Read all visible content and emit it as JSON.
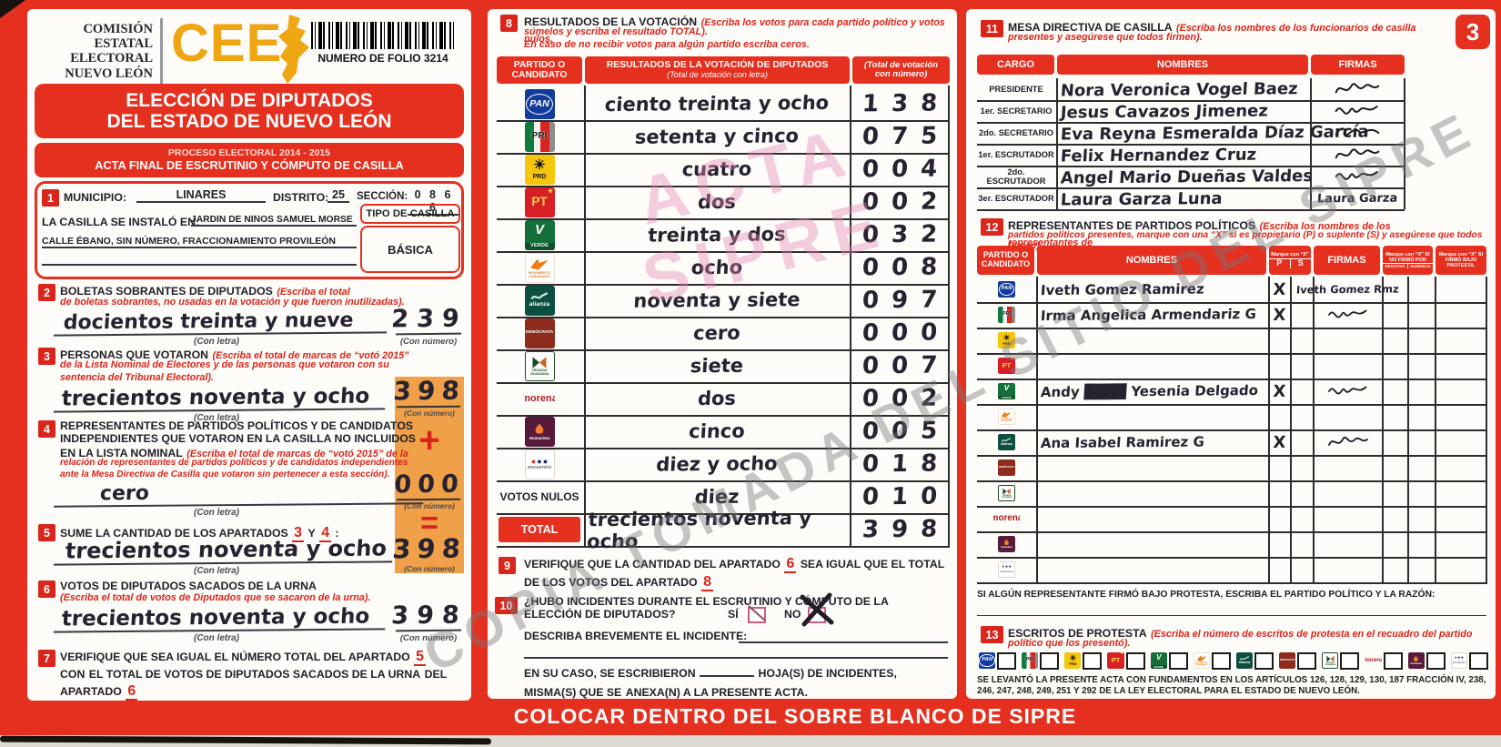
{
  "watermarks": {
    "diagonal": "COPIA TOMADA DEL SITIO DEL SIPRE",
    "stamp_line1": "ACTA",
    "stamp_line2": "SIPRE"
  },
  "header": {
    "org": [
      "COMISIÓN",
      "ESTATAL",
      "ELECTORAL",
      "NUEVO LEÓN"
    ],
    "logo_text": "CEE",
    "folio": "NUMERO DE FOLIO 3214",
    "title1": "ELECCIÓN DE DIPUTADOS",
    "title2": "DEL ESTADO DE NUEVO LEÓN",
    "process": "PROCESO ELECTORAL  2014 - 2015",
    "acta_title": "ACTA FINAL DE ESCRUTINIO Y CÓMPUTO DE CASILLA"
  },
  "captions": {
    "con_letra": "(Con letra)",
    "con_numero": "(Con número)"
  },
  "section1": {
    "num": "1",
    "municipio_label": "MUNICIPIO:",
    "municipio": "LINARES",
    "distrito_label": "DISTRITO:",
    "distrito": "25",
    "seccion_label": "SECCIÓN:",
    "seccion": "0 8 6 6",
    "instalada_label": "LA CASILLA SE INSTALÓ EN:",
    "instalada": "JARDÍN DE NIÑOS SAMUEL MORSE",
    "direccion": "CALLE ÉBANO, SIN NÚMERO, FRACCIONAMIENTO PROVILEÓN",
    "tipo_label": "TIPO DE CASILLA",
    "tipo": "BÁSICA"
  },
  "section2": {
    "num": "2",
    "title": "BOLETAS SOBRANTES DE DIPUTADOS",
    "hint1": "(Escriba el total",
    "hint2": "de boletas sobrantes, no usadas en la votación y que fueron inutilizadas).",
    "letra": "docientos treinta y nueve",
    "numero": "239"
  },
  "section3": {
    "num": "3",
    "title": "PERSONAS QUE VOTARON",
    "hint1": "(Escriba el total de marcas de “votó 2015”",
    "hint2": "de la Lista Nominal de Electores y de las personas que votaron con su",
    "hint3": "sentencia del Tribunal Electoral).",
    "letra": "trecientos noventa y ocho",
    "numero": "398"
  },
  "section4": {
    "num": "4",
    "title1": "REPRESENTANTES DE PARTIDOS POLÍTICOS Y DE CANDIDATOS",
    "title2": "INDEPENDIENTES QUE VOTARON EN LA CASILLA NO INCLUIDOS",
    "title3": "EN LA LISTA NOMINAL",
    "hint1": "(Escriba el total de marcas de “votó 2015” de la",
    "hint2": "relación de representantes de partidos políticos y de candidatos independientes",
    "hint3": "ante la Mesa Directiva de Casilla que votaron sin pertenecer a esta sección).",
    "letra": "cero",
    "numero": "000",
    "plus": "+"
  },
  "section5": {
    "num": "5",
    "t1": "SUME LA CANTIDAD DE LOS APARTADOS",
    "r1": "3",
    "t2": "Y",
    "r2": "4",
    "t3": ":",
    "letra": "trecientos noventa y ocho",
    "numero": "398",
    "equals": "="
  },
  "section6": {
    "num": "6",
    "title": "VOTOS DE DIPUTADOS SACADOS DE LA URNA",
    "hint": "(Escriba el total de votos de Diputados que se sacaron de la urna).",
    "letra": "trecientos noventa y ocho",
    "numero": "398"
  },
  "section7": {
    "num": "7",
    "t1": "VERIFIQUE QUE SEA IGUAL EL NÚMERO TOTAL DEL APARTADO",
    "r1": "5",
    "t2": "CON",
    "t3": "EL TOTAL DE VOTOS DE DIPUTADOS SACADOS DE LA URNA",
    "t4": "DEL APARTADO",
    "r2": "6"
  },
  "section8": {
    "num": "8",
    "title": "RESULTADOS DE LA VOTACIÓN",
    "hint1": "(Escriba los votos para cada partido político y votos nulos,",
    "hint2": "súmelos y escriba el resultado TOTAL).",
    "hint3": "En caso de no recibir votos para algún partido escriba ceros.",
    "col1a": "PARTIDO O",
    "col1b": "CANDIDATO",
    "col2": "RESULTADOS DE LA VOTACIÓN DE DIPUTADOS",
    "col2sub": "(Total de votación con letra)",
    "col3a": "(Total de votación",
    "col3b": "con número)",
    "votos_nulos_label": "VOTOS NULOS",
    "total_label": "TOTAL",
    "rows": [
      {
        "party": "PAN",
        "letra": "ciento treinta y ocho",
        "numero": "138"
      },
      {
        "party": "PRI",
        "letra": "setenta y cinco",
        "numero": "075"
      },
      {
        "party": "PRD",
        "letra": "cuatro",
        "numero": "004"
      },
      {
        "party": "PT",
        "letra": "dos",
        "numero": "002"
      },
      {
        "party": "VERDE",
        "letra": "treinta y dos",
        "numero": "032"
      },
      {
        "party": "MC",
        "letra": "ocho",
        "numero": "008"
      },
      {
        "party": "ALIANZA",
        "letra": "noventa y siete",
        "numero": "097"
      },
      {
        "party": "DEMOCRATA",
        "letra": "cero",
        "numero": "000"
      },
      {
        "party": "CRUZADA",
        "letra": "siete",
        "numero": "007"
      },
      {
        "party": "MORENA",
        "letra": "dos",
        "numero": "002"
      },
      {
        "party": "HUMANISTA",
        "letra": "cinco",
        "numero": "005"
      },
      {
        "party": "ENCUENTRO",
        "letra": "diez y ocho",
        "numero": "018"
      },
      {
        "party": "VOTOS_NULOS",
        "letra": "diez",
        "numero": "010"
      },
      {
        "party": "TOTAL",
        "letra": "trecientos noventa y ocho",
        "numero": "398"
      }
    ]
  },
  "section9": {
    "num": "9",
    "t1": "VERIFIQUE QUE LA CANTIDAD DEL APARTADO",
    "r1": "6",
    "t2": "SEA IGUAL QUE EL TOTAL DE LOS VOTOS DEL APARTADO",
    "r2": "8"
  },
  "section10": {
    "num": "10",
    "q1": "¿HUBO INCIDENTES DURANTE EL ESCRUTINIO Y CÓMPUTO DE LA",
    "q2": "ELECCIÓN DE DIPUTADOS?",
    "si": "SÍ",
    "no": "NO",
    "describa": "DESCRIBA BREVEMENTE EL INCIDENTE:",
    "encaso": "EN SU CASO, SE ESCRIBIERON",
    "hojas": "HOJA(S) DE INCIDENTES, MISMA(S) QUE SE",
    "anexa": "ANEXA(N) A LA PRESENTE ACTA."
  },
  "section11": {
    "num": "11",
    "title": "MESA DIRECTIVA DE CASILLA",
    "hint1": "(Escriba los nombres de los funcionarios de casilla",
    "hint2": "presentes y asegúrese que todos firmen).",
    "page": "3",
    "col_cargo": "CARGO",
    "col_nombres": "NOMBRES",
    "col_firmas": "FIRMAS",
    "rows": [
      {
        "cargo": "PRESIDENTE",
        "nombre": "Nora Veronica Vogel Baez"
      },
      {
        "cargo": "1er. SECRETARIO",
        "nombre": "Jesus Cavazos Jimenez"
      },
      {
        "cargo": "2do. SECRETARIO",
        "nombre": "Eva Reyna Esmeralda Díaz García"
      },
      {
        "cargo": "1er. ESCRUTADOR",
        "nombre": "Felix Hernandez Cruz"
      },
      {
        "cargo": "2do. ESCRUTADOR",
        "nombre": "Angel Mario Dueñas Valdes"
      },
      {
        "cargo": "3er. ESCRUTADOR",
        "nombre": "Laura Garza Luna",
        "firma_texto": "Laura Garza"
      }
    ]
  },
  "section12": {
    "num": "12",
    "title": "REPRESENTANTES DE PARTIDOS POLÍTICOS",
    "hint1": "(Escriba los nombres de los representantes de",
    "hint2": "partidos políticos presentes, marque con una “X” si es propietario (P) o suplente (S) y asegúrese que todos firmen).",
    "col_party1": "PARTIDO O",
    "col_party2": "CANDIDATO",
    "col_nombres": "NOMBRES",
    "marque": "Marque con “X”",
    "p": "P",
    "s": "S",
    "col_firmas": "FIRMAS",
    "marque_nofirmo": "Marque con “X” SI NO FIRMÓ POR",
    "negativa": "NEGATIVA",
    "ausencia": "AUSENCIA",
    "marque_protesta": "Marque con “X” SI FIRMÓ BAJO PROTESTA.",
    "rows": [
      {
        "party": "PAN",
        "nombre": "Iveth Gomez Ramirez",
        "p": "X",
        "firma_texto": "Iveth Gomez Rmz"
      },
      {
        "party": "PRI",
        "nombre": "Irma Angelica Armendariz G",
        "p": "X",
        "firma": true
      },
      {
        "party": "PRD"
      },
      {
        "party": "PT"
      },
      {
        "party": "VERDE",
        "nombre": "Andy ████ Yesenia Delgado",
        "p": "X",
        "firma": true
      },
      {
        "party": "MC"
      },
      {
        "party": "ALIANZA",
        "nombre": "Ana Isabel Ramirez G",
        "p": "X",
        "firma": true
      },
      {
        "party": "DEMOCRATA"
      },
      {
        "party": "CRUZADA"
      },
      {
        "party": "MORENA"
      },
      {
        "party": "HUMANISTA"
      },
      {
        "party": "ENCUENTRO"
      }
    ],
    "protesta_note": "SI ALGÚN REPRESENTANTE FIRMÓ BAJO PROTESTA, ESCRIBA EL PARTIDO POLÍTICO Y LA RAZÓN:"
  },
  "section13": {
    "num": "13",
    "title": "ESCRITOS DE PROTESTA",
    "hint1": "(Escriba el número de escritos de protesta en el recuadro del partido",
    "hint2": "político que los presentó).",
    "legal": "SE LEVANTÓ LA PRESENTE ACTA CON FUNDAMENTOS EN LOS ARTÍCULOS 126, 128, 129, 130, 187 FRACCIÓN IV, 238, 246, 247, 248, 249, 251 Y 292 DE LA LEY ELECTORAL PARA EL ESTADO DE NUEVO LEÓN."
  },
  "parties": {
    "PAN": "PAN",
    "PRI": "PRI",
    "PRD": "PRD",
    "PT": "PT",
    "VERDE": "VERDE",
    "MC": "MOVIMIENTO CIUDADANO",
    "ALIANZA": "alianza",
    "DEMOCRATA": "DEMÓCRATA",
    "CRUZADA": "CRUZADA CIUDADANA",
    "MORENA": "morena",
    "HUMANISTA": "Humanista",
    "ENCUENTRO": "encuentro"
  },
  "footer": "COLOCAR DENTRO DEL SOBRE BLANCO DE SIPRE",
  "colors": {
    "form_red": "#e5301f",
    "gold": "#efa612",
    "highlight_orange": "#efa049",
    "ink": "#262230"
  }
}
